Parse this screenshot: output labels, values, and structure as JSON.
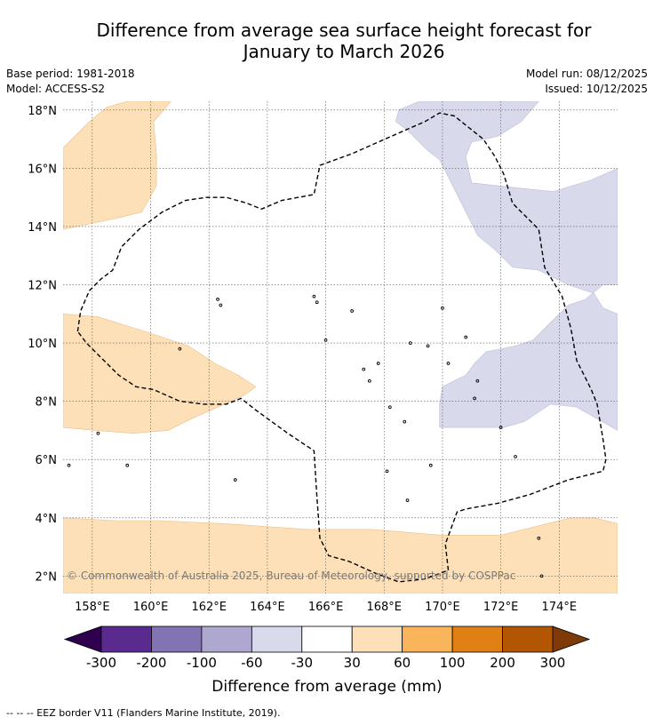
{
  "header": {
    "title_line1": "Difference from average sea surface height forecast for",
    "title_line2": "January to March 2026",
    "base_period": "Base period: 1981-2018",
    "model": "Model: ACCESS-S2",
    "model_run": "Model run: 08/12/2025",
    "issued": "Issued: 10/12/2025"
  },
  "map": {
    "lon_range": [
      157,
      176
    ],
    "lat_range": [
      1.4,
      18.3
    ],
    "lon_ticks": [
      158,
      160,
      162,
      164,
      166,
      168,
      170,
      172,
      174
    ],
    "lon_tick_labels": [
      "158°E",
      "160°E",
      "162°E",
      "164°E",
      "166°E",
      "168°E",
      "170°E",
      "172°E",
      "174°E"
    ],
    "lat_ticks": [
      2,
      4,
      6,
      8,
      10,
      12,
      14,
      16,
      18
    ],
    "lat_tick_labels": [
      "2°N",
      "4°N",
      "6°N",
      "8°N",
      "10°N",
      "12°N",
      "14°N",
      "16°N",
      "18°N"
    ],
    "copyright": "© Commonwealth of Australia 2025, Bureau of Meteorology, supported by COSPPac",
    "colors": {
      "positive_30_60": "#fde0b8",
      "negative_30_60": "#d8d9eb",
      "eez_border": "#000000",
      "grid": "#555555"
    },
    "regions": [
      {
        "category": "30-60",
        "color": "#fde0b8",
        "points": [
          [
            157,
            16.7
          ],
          [
            157.9,
            17.6
          ],
          [
            158.5,
            18.1
          ],
          [
            159.2,
            18.3
          ],
          [
            160.7,
            18.3
          ],
          [
            160.1,
            17.6
          ],
          [
            160.2,
            16.5
          ],
          [
            160.2,
            15.4
          ],
          [
            159.7,
            14.5
          ],
          [
            158.9,
            14.3
          ],
          [
            157,
            13.9
          ]
        ]
      },
      {
        "category": "30-60",
        "color": "#fde0b8",
        "points": [
          [
            157,
            11.0
          ],
          [
            158.2,
            10.9
          ],
          [
            159.8,
            10.4
          ],
          [
            161.3,
            9.9
          ],
          [
            162.2,
            9.3
          ],
          [
            163.0,
            8.9
          ],
          [
            163.6,
            8.5
          ],
          [
            163.2,
            8.2
          ],
          [
            162.3,
            7.8
          ],
          [
            161.4,
            7.4
          ],
          [
            160.6,
            7.0
          ],
          [
            159.4,
            6.9
          ],
          [
            158.1,
            7.0
          ],
          [
            157,
            7.1
          ]
        ]
      },
      {
        "category": "30-60",
        "color": "#fde0b8",
        "points": [
          [
            157,
            4.0
          ],
          [
            158.8,
            3.9
          ],
          [
            160.3,
            3.9
          ],
          [
            162.5,
            3.8
          ],
          [
            165.4,
            3.6
          ],
          [
            167.6,
            3.6
          ],
          [
            170.0,
            3.4
          ],
          [
            172.0,
            3.4
          ],
          [
            173.2,
            3.7
          ],
          [
            174.4,
            4.0
          ],
          [
            175.2,
            4.0
          ],
          [
            176,
            3.8
          ],
          [
            176,
            1.4
          ],
          [
            157,
            1.4
          ]
        ]
      },
      {
        "category": "-60 to -30",
        "color": "#d8d9eb",
        "points": [
          [
            168.5,
            18.0
          ],
          [
            169.2,
            18.3
          ],
          [
            173.3,
            18.3
          ],
          [
            172.7,
            17.6
          ],
          [
            171.9,
            17.1
          ],
          [
            171.0,
            16.9
          ],
          [
            170.8,
            16.4
          ],
          [
            171.0,
            15.5
          ],
          [
            172.8,
            15.3
          ],
          [
            173.8,
            15.2
          ],
          [
            175.1,
            15.6
          ],
          [
            176,
            16.0
          ],
          [
            176,
            12.0
          ],
          [
            175.5,
            12.0
          ],
          [
            174.9,
            11.5
          ],
          [
            174.3,
            11.3
          ],
          [
            173.6,
            10.6
          ],
          [
            173.1,
            10.1
          ],
          [
            172.5,
            9.9
          ],
          [
            171.5,
            9.7
          ],
          [
            171.1,
            9.3
          ],
          [
            170.8,
            8.9
          ],
          [
            170.0,
            8.5
          ],
          [
            169.9,
            7.9
          ],
          [
            169.9,
            7.1
          ],
          [
            171.1,
            7.1
          ],
          [
            172.1,
            7.1
          ],
          [
            172.8,
            7.3
          ],
          [
            173.7,
            7.9
          ],
          [
            174.6,
            7.8
          ],
          [
            176,
            7.0
          ],
          [
            176,
            11.0
          ],
          [
            175.5,
            11.2
          ],
          [
            175.2,
            11.7
          ],
          [
            174.3,
            12.0
          ],
          [
            173.3,
            12.5
          ],
          [
            172.4,
            12.6
          ],
          [
            171.8,
            13.2
          ],
          [
            171.2,
            13.7
          ],
          [
            170.8,
            14.5
          ],
          [
            170.3,
            15.5
          ],
          [
            169.9,
            16.3
          ],
          [
            169.5,
            16.6
          ],
          [
            168.8,
            17.3
          ],
          [
            168.4,
            17.6
          ]
        ]
      }
    ],
    "eez_border": [
      [
        157.5,
        10.4
      ],
      [
        157.6,
        11.1
      ],
      [
        157.9,
        11.8
      ],
      [
        158.3,
        12.2
      ],
      [
        158.7,
        12.5
      ],
      [
        159.0,
        13.3
      ],
      [
        159.6,
        13.9
      ],
      [
        160.4,
        14.5
      ],
      [
        161.2,
        14.9
      ],
      [
        161.9,
        15.0
      ],
      [
        162.6,
        15.0
      ],
      [
        163.3,
        14.8
      ],
      [
        163.8,
        14.6
      ],
      [
        164.5,
        14.9
      ],
      [
        165.6,
        15.1
      ],
      [
        165.8,
        16.1
      ],
      [
        166.9,
        16.5
      ],
      [
        167.8,
        16.9
      ],
      [
        168.7,
        17.3
      ],
      [
        169.4,
        17.6
      ],
      [
        169.9,
        17.9
      ],
      [
        170.4,
        17.8
      ],
      [
        170.9,
        17.4
      ],
      [
        171.4,
        17.0
      ],
      [
        171.8,
        16.4
      ],
      [
        172.1,
        15.8
      ],
      [
        172.4,
        14.8
      ],
      [
        172.9,
        14.3
      ],
      [
        173.3,
        13.9
      ],
      [
        173.5,
        12.6
      ],
      [
        173.8,
        12.1
      ],
      [
        174.1,
        11.6
      ],
      [
        174.4,
        10.5
      ],
      [
        174.6,
        9.4
      ],
      [
        174.9,
        8.8
      ],
      [
        175.1,
        8.4
      ],
      [
        175.3,
        7.9
      ],
      [
        175.5,
        6.7
      ],
      [
        175.6,
        6.0
      ],
      [
        175.5,
        5.6
      ],
      [
        174.3,
        5.3
      ],
      [
        173.0,
        4.8
      ],
      [
        171.9,
        4.5
      ],
      [
        170.8,
        4.3
      ],
      [
        170.5,
        4.2
      ],
      [
        170.1,
        3.1
      ],
      [
        170.2,
        2.2
      ],
      [
        169.4,
        1.9
      ],
      [
        168.5,
        1.8
      ],
      [
        167.7,
        2.1
      ],
      [
        166.8,
        2.5
      ],
      [
        166.1,
        2.7
      ],
      [
        165.8,
        3.3
      ],
      [
        165.7,
        4.7
      ],
      [
        165.6,
        6.3
      ],
      [
        164.7,
        6.9
      ],
      [
        163.6,
        7.7
      ],
      [
        163.1,
        8.1
      ],
      [
        162.6,
        7.9
      ],
      [
        161.8,
        7.9
      ],
      [
        161.0,
        8.0
      ],
      [
        160.1,
        8.4
      ],
      [
        159.5,
        8.5
      ],
      [
        158.9,
        8.9
      ],
      [
        158.2,
        9.6
      ],
      [
        157.8,
        10.0
      ],
      [
        157.5,
        10.4
      ]
    ]
  },
  "colorbar": {
    "label": "Difference from average (mm)",
    "ticks": [
      "-300",
      "-200",
      "-100",
      "-60",
      "-30",
      "30",
      "60",
      "100",
      "200",
      "300"
    ],
    "colors": [
      "#5b2a8f",
      "#8373b2",
      "#aea7d0",
      "#d8d9eb",
      "#ffffff",
      "#fde0b8",
      "#f9b45c",
      "#e07f14",
      "#b35604"
    ],
    "extend_low_color": "#2f004d",
    "extend_high_color": "#7f3a08"
  },
  "footnote": "--  --  -- EEZ border V11 (Flanders Marine Institute, 2019)."
}
